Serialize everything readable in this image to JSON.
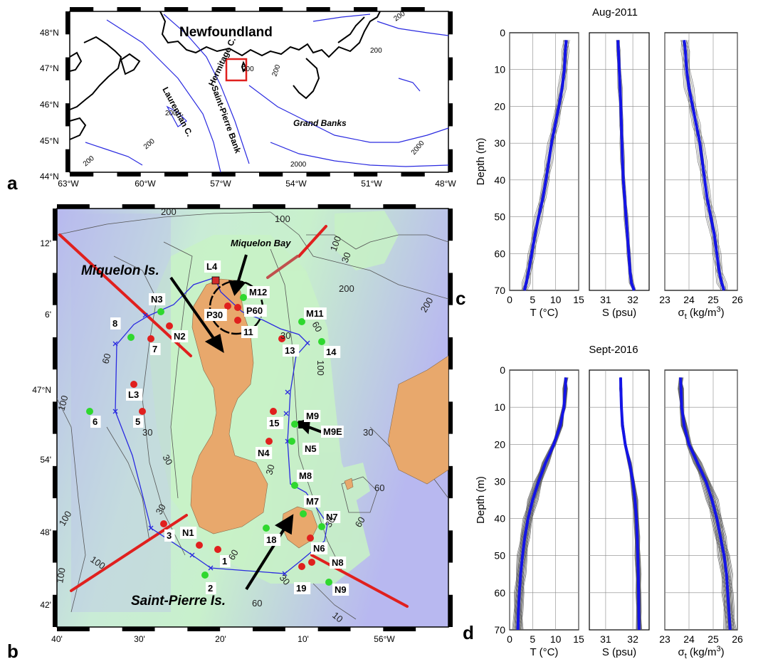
{
  "panel_letters": {
    "a": "a",
    "b": "b",
    "c": "c",
    "d": "d"
  },
  "map_a": {
    "lat_ticks": [
      "48°N",
      "47°N",
      "46°N",
      "45°N",
      "44°N"
    ],
    "lon_ticks": [
      "63°W",
      "60°W",
      "57°W",
      "54°W",
      "51°W",
      "48°W"
    ],
    "labels": {
      "newfoundland": "Newfoundland",
      "hermitage": "Hermitage C.",
      "laurentian": "Laurentian C.",
      "saint_pierre_bank": "Saint-Pierre Bank",
      "grand_banks": "Grand Banks"
    },
    "contours": [
      "200",
      "200",
      "200",
      "200",
      "200",
      "200",
      "2000",
      "2000",
      "200"
    ],
    "colors": {
      "coast": "#000000",
      "isobath": "#2a2ae0",
      "box": "#e0201e"
    }
  },
  "map_b": {
    "lat_ticks": [
      "12'",
      "6'",
      "47°N",
      "54'",
      "48'",
      "42'"
    ],
    "lon_ticks": [
      "40'",
      "30'",
      "20'",
      "10'",
      "56°W"
    ],
    "labels": {
      "miquelon_is": "Miquelon Is.",
      "miquelon_bay": "Miquelon Bay",
      "saint_pierre_is": "Saint-Pierre Is."
    },
    "stations": [
      {
        "name": "L4",
        "c": "#d32b2b"
      },
      {
        "name": "M12",
        "c": "#2fd82f"
      },
      {
        "name": "P30",
        "c": "#e0201e"
      },
      {
        "name": "P60",
        "c": "#e0201e"
      },
      {
        "name": "11",
        "c": "#e0201e"
      },
      {
        "name": "N3",
        "c": "#2fd82f"
      },
      {
        "name": "N2",
        "c": "#e0201e"
      },
      {
        "name": "8",
        "c": "#2fd82f"
      },
      {
        "name": "7",
        "c": "#e0201e"
      },
      {
        "name": "M11",
        "c": "#2fd82f"
      },
      {
        "name": "13",
        "c": "#e0201e"
      },
      {
        "name": "14",
        "c": "#2fd82f"
      },
      {
        "name": "L3",
        "c": "#e0201e"
      },
      {
        "name": "6",
        "c": "#2fd82f"
      },
      {
        "name": "5",
        "c": "#e0201e"
      },
      {
        "name": "15",
        "c": "#e0201e"
      },
      {
        "name": "M9",
        "c": "#2fd82f"
      },
      {
        "name": "M9E",
        "c": "#000000"
      },
      {
        "name": "N4",
        "c": "#e0201e"
      },
      {
        "name": "N5",
        "c": "#2fd82f"
      },
      {
        "name": "M8",
        "c": "#2fd82f"
      },
      {
        "name": "M7",
        "c": "#2fd82f"
      },
      {
        "name": "N7",
        "c": "#2fd82f"
      },
      {
        "name": "3",
        "c": "#e0201e"
      },
      {
        "name": "N1",
        "c": "#e0201e"
      },
      {
        "name": "1",
        "c": "#e0201e"
      },
      {
        "name": "18",
        "c": "#2fd82f"
      },
      {
        "name": "N6",
        "c": "#e0201e"
      },
      {
        "name": "N8",
        "c": "#e0201e"
      },
      {
        "name": "2",
        "c": "#2fd82f"
      },
      {
        "name": "19",
        "c": "#e0201e"
      },
      {
        "name": "N9",
        "c": "#2fd82f"
      }
    ],
    "contours": [
      "200",
      "100",
      "100",
      "30",
      "200",
      "200",
      "60",
      "30",
      "100",
      "60",
      "100",
      "30",
      "30",
      "30",
      "30",
      "60",
      "60",
      "100",
      "30",
      "30",
      "60",
      "100",
      "100",
      "30",
      "60",
      "10"
    ],
    "colors": {
      "land": "#e8a86c",
      "deep": "#b7b8ef",
      "shallow": "#c7f0c7",
      "track": "#2a2ae0",
      "section": "#e0201e"
    }
  },
  "profiles": {
    "rows": [
      {
        "title": "Aug-2011",
        "letter": "c"
      },
      {
        "title": "Sept-2016",
        "letter": "d"
      }
    ],
    "ylabel": "Depth (m)",
    "yticks": [
      "0",
      "10",
      "20",
      "30",
      "40",
      "50",
      "60",
      "70"
    ],
    "panels": [
      {
        "xlabel": "T (°C)",
        "xticks": [
          "0",
          "5",
          "10",
          "15"
        ]
      },
      {
        "xlabel": "S (psu)",
        "xticks": [
          "31",
          "32"
        ]
      },
      {
        "xlabel_main": "σ",
        "xlabel_sub": "t",
        "xlabel_rest": " (kg/m",
        "xlabel_sup": "3",
        "xlabel_end": ")",
        "xticks_row1": [
          "23",
          "24",
          "25",
          "26"
        ],
        "xticks_row2": [
          "23",
          "24",
          "25",
          "26"
        ]
      }
    ],
    "colors": {
      "mean": "#1414e6",
      "cast": "#555555"
    }
  },
  "chart_data": [
    {
      "type": "line",
      "title": "Aug-2011",
      "xlabel": "T (°C)",
      "ylabel": "Depth (m)",
      "xlim": [
        0,
        15
      ],
      "ylim": [
        70,
        0
      ],
      "series": [
        {
          "x": [
            12.3,
            12.1,
            11.9,
            11.4,
            10.7,
            9.9,
            9.1,
            8.5,
            7.9,
            7.2,
            6.3,
            5.5,
            4.8,
            4.1,
            3.6,
            3.2
          ],
          "y": [
            2,
            5,
            10,
            15,
            20,
            25,
            30,
            35,
            40,
            45,
            50,
            55,
            60,
            65,
            68,
            70
          ]
        }
      ]
    },
    {
      "type": "line",
      "title": "Aug-2011",
      "xlabel": "S (psu)",
      "ylim": [
        70,
        0
      ],
      "xlim": [
        30.4,
        32.6
      ],
      "series": [
        {
          "x": [
            31.45,
            31.47,
            31.5,
            31.53,
            31.56,
            31.58,
            31.6,
            31.62,
            31.65,
            31.7,
            31.75,
            31.8,
            31.85,
            31.9,
            31.95,
            32.05
          ],
          "y": [
            2,
            5,
            10,
            15,
            20,
            25,
            30,
            35,
            40,
            45,
            50,
            55,
            60,
            65,
            68,
            70
          ]
        }
      ]
    },
    {
      "type": "line",
      "title": "Aug-2011",
      "xlabel": "σt (kg/m3)",
      "ylim": [
        70,
        0
      ],
      "xlim": [
        23,
        26
      ],
      "series": [
        {
          "x": [
            23.8,
            23.85,
            23.9,
            24.0,
            24.15,
            24.3,
            24.45,
            24.55,
            24.65,
            24.75,
            24.9,
            25.05,
            25.15,
            25.25,
            25.35,
            25.45
          ],
          "y": [
            2,
            5,
            10,
            15,
            20,
            25,
            30,
            35,
            40,
            45,
            50,
            55,
            60,
            65,
            68,
            70
          ]
        }
      ]
    },
    {
      "type": "line",
      "title": "Sept-2016",
      "xlabel": "T (°C)",
      "ylabel": "Depth (m)",
      "xlim": [
        0,
        15
      ],
      "ylim": [
        70,
        0
      ],
      "series": [
        {
          "x": [
            12.2,
            12.1,
            11.8,
            11.0,
            9.6,
            7.8,
            6.3,
            5.0,
            4.0,
            3.3,
            2.8,
            2.4,
            2.1,
            1.9,
            1.8
          ],
          "y": [
            2,
            5,
            10,
            15,
            20,
            25,
            30,
            35,
            40,
            45,
            50,
            55,
            60,
            65,
            70
          ]
        }
      ]
    },
    {
      "type": "line",
      "title": "Sept-2016",
      "xlabel": "S (psu)",
      "ylim": [
        70,
        0
      ],
      "xlim": [
        30.4,
        32.6
      ],
      "series": [
        {
          "x": [
            31.55,
            31.56,
            31.58,
            31.62,
            31.72,
            31.88,
            32.0,
            32.08,
            32.13,
            32.16,
            32.18,
            32.2,
            32.21,
            32.22,
            32.23
          ],
          "y": [
            2,
            5,
            10,
            15,
            20,
            25,
            30,
            35,
            40,
            45,
            50,
            55,
            60,
            65,
            70
          ]
        }
      ]
    },
    {
      "type": "line",
      "title": "Sept-2016",
      "xlabel": "σt (kg/m3)",
      "ylim": [
        70,
        0
      ],
      "xlim": [
        23,
        26
      ],
      "series": [
        {
          "x": [
            23.65,
            23.67,
            23.7,
            23.8,
            24.0,
            24.35,
            24.7,
            24.95,
            25.15,
            25.3,
            25.45,
            25.55,
            25.6,
            25.65,
            25.7
          ],
          "y": [
            2,
            5,
            10,
            15,
            20,
            25,
            30,
            35,
            40,
            45,
            50,
            55,
            60,
            65,
            70
          ]
        }
      ]
    }
  ]
}
